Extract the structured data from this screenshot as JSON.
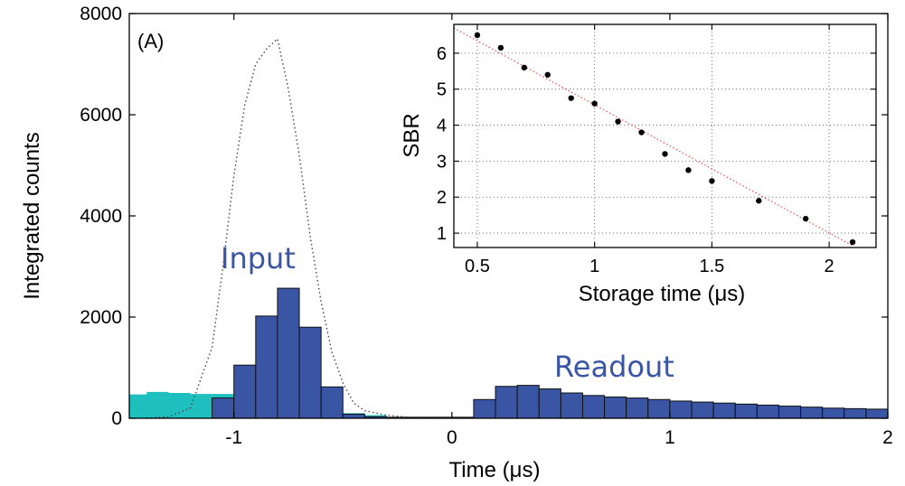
{
  "chart_data": [
    {
      "type": "bar",
      "panel_label": "(A)",
      "xlabel": "Time (μs)",
      "ylabel": "Integrated counts",
      "xlim": [
        -1.48,
        2.0
      ],
      "ylim": [
        0,
        8000
      ],
      "xticks": [
        -1,
        0,
        1,
        2
      ],
      "yticks": [
        0,
        2000,
        4000,
        6000,
        8000
      ],
      "grid": false,
      "annotations": [
        "Input",
        "Readout"
      ],
      "colors": {
        "signal": "#3a55a4",
        "background": "#1dbfbf",
        "input_pulse": "#444444"
      },
      "signal_bins": {
        "bin_width": 0.1,
        "left_edges": [
          -1.1,
          -1.0,
          -0.9,
          -0.8,
          -0.7,
          -0.6,
          -0.5,
          -0.4,
          -0.3,
          -0.2,
          -0.1,
          0.0,
          0.1,
          0.2,
          0.3,
          0.4,
          0.5,
          0.6,
          0.7,
          0.8,
          0.9,
          1.0,
          1.1,
          1.2,
          1.3,
          1.4,
          1.5,
          1.6,
          1.7,
          1.8,
          1.9
        ],
        "values": [
          400,
          1050,
          2020,
          2570,
          1800,
          620,
          80,
          30,
          20,
          20,
          20,
          20,
          370,
          630,
          650,
          580,
          500,
          450,
          420,
          400,
          370,
          340,
          320,
          300,
          280,
          260,
          240,
          220,
          200,
          190,
          180
        ]
      },
      "background_bins": {
        "x": [
          -1.48,
          -1.4,
          -1.3,
          -1.2,
          -1.1,
          -1.0,
          -0.9,
          -0.8,
          -0.7,
          -0.6,
          -0.5,
          -0.4,
          -0.3,
          -0.2,
          -0.1,
          0.0,
          0.1,
          0.2,
          0.3,
          0.4,
          0.5,
          0.6,
          0.7,
          0.8,
          0.9,
          1.0,
          1.1,
          1.2,
          1.3,
          1.4,
          1.5,
          1.6,
          1.7,
          1.8,
          1.9
        ],
        "values": [
          470,
          520,
          500,
          480,
          480,
          490,
          490,
          450,
          350,
          250,
          100,
          60,
          20,
          20,
          20,
          20,
          90,
          110,
          120,
          120,
          120,
          110,
          110,
          110,
          100,
          100,
          100,
          100,
          95,
          90,
          90,
          90,
          90,
          90,
          90
        ]
      },
      "input_pulse": {
        "x": [
          -1.4,
          -1.3,
          -1.2,
          -1.1,
          -1.05,
          -1.0,
          -0.95,
          -0.9,
          -0.85,
          -0.8,
          -0.75,
          -0.7,
          -0.65,
          -0.6,
          -0.55,
          -0.5,
          -0.45,
          -0.4,
          -0.3,
          -0.2
        ],
        "y": [
          0,
          30,
          200,
          1400,
          3000,
          4800,
          6200,
          7000,
          7300,
          7500,
          6500,
          5200,
          3600,
          2300,
          1300,
          700,
          300,
          150,
          60,
          20
        ]
      }
    },
    {
      "type": "scatter",
      "xlabel": "Storage time (μs)",
      "ylabel": "SBR",
      "xlim": [
        0.4,
        2.2
      ],
      "ylim": [
        0.6,
        6.8
      ],
      "xticks": [
        0.5,
        1,
        1.5,
        2
      ],
      "xticklabels": [
        "0.5",
        "1",
        "1.5",
        "2"
      ],
      "yticks": [
        1,
        2,
        3,
        4,
        5,
        6
      ],
      "grid": true,
      "points": {
        "x": [
          0.5,
          0.6,
          0.7,
          0.8,
          0.9,
          1.0,
          1.1,
          1.2,
          1.3,
          1.4,
          1.5,
          1.7,
          1.9,
          2.1
        ],
        "y": [
          6.5,
          6.15,
          5.6,
          5.4,
          4.75,
          4.6,
          4.1,
          3.8,
          3.2,
          2.75,
          2.45,
          1.9,
          1.4,
          0.75
        ]
      },
      "fit_line": {
        "x": [
          0.4,
          2.1
        ],
        "y": [
          6.7,
          0.65
        ],
        "color": "#e05050"
      }
    }
  ]
}
